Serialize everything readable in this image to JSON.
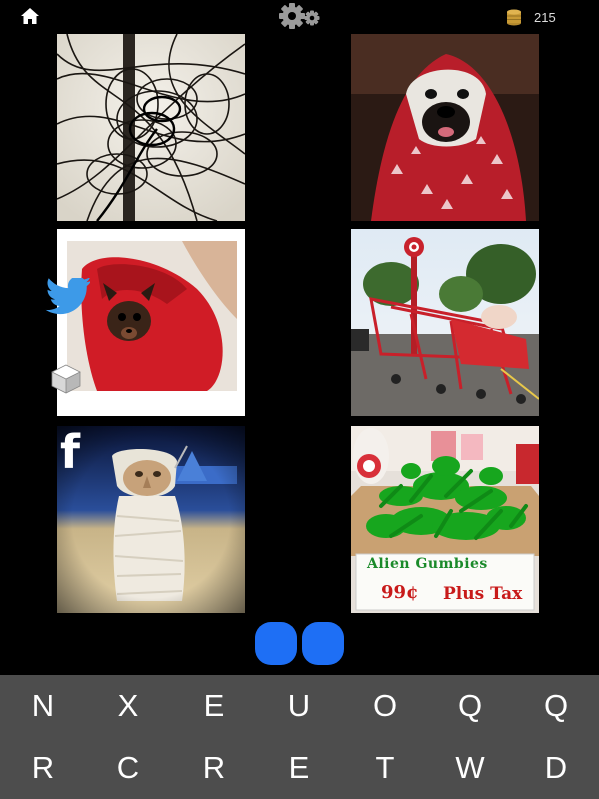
{
  "top_bar": {
    "home_icon": "home-icon",
    "settings_icon": "gear-icon",
    "coin_icon": "coin-stack-icon",
    "coin_count": "215"
  },
  "photos": [
    {
      "name": "tangled-power-lines"
    },
    {
      "name": "dog-in-red-blanket"
    },
    {
      "name": "small-dog-in-red-towel"
    },
    {
      "name": "red-shopping-carts"
    },
    {
      "name": "alien-wrapped-in-bandage"
    },
    {
      "name": "green-alien-gumbies",
      "sign_line1": "Alien Gumbies",
      "sign_line2": "99¢",
      "sign_line3": "Plus Tax"
    }
  ],
  "share": {
    "twitter_icon": "twitter-bird-icon",
    "cube_icon": "cube-icon",
    "facebook_glyph": "f"
  },
  "answer": {
    "slots": 2,
    "color": "#1e6ff5"
  },
  "keyboard": {
    "row1": [
      "N",
      "X",
      "E",
      "U",
      "O",
      "Q",
      "Q"
    ],
    "row2": [
      "R",
      "C",
      "R",
      "E",
      "T",
      "W",
      "D"
    ]
  },
  "colors": {
    "background": "#000000",
    "keyboard_bg": "#4d4d4d",
    "slot_blue": "#1e6ff5"
  }
}
